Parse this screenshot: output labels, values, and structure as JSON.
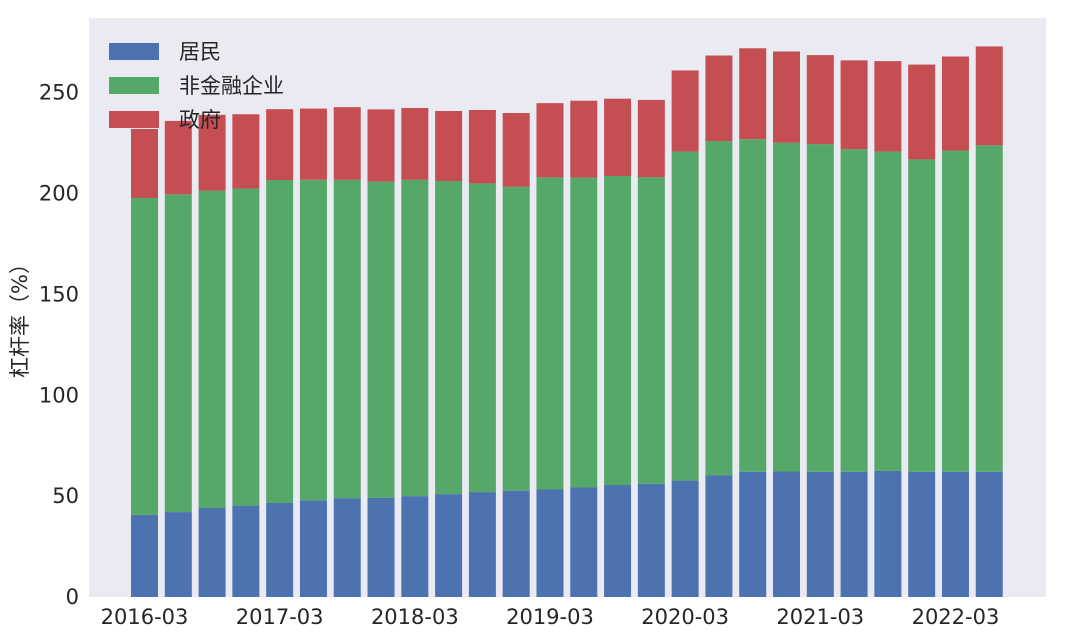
{
  "chart_data": {
    "type": "bar",
    "stacked": true,
    "title": "",
    "xlabel": "",
    "ylabel": "杠杆率（%）",
    "ylim": [
      0,
      287
    ],
    "yticks": [
      0,
      50,
      100,
      150,
      200,
      250
    ],
    "grid": false,
    "legend_position": "top-left",
    "background_color": "#EAEAF2",
    "categories": [
      "2016-03",
      "2016-06",
      "2016-09",
      "2016-12",
      "2017-03",
      "2017-06",
      "2017-09",
      "2017-12",
      "2018-03",
      "2018-06",
      "2018-09",
      "2018-12",
      "2019-03",
      "2019-06",
      "2019-09",
      "2019-12",
      "2020-03",
      "2020-06",
      "2020-09",
      "2020-12",
      "2021-03",
      "2021-06",
      "2021-09",
      "2021-12",
      "2022-03",
      "2022-06"
    ],
    "xtick_labels": [
      "2016-03",
      "2017-03",
      "2018-03",
      "2019-03",
      "2020-03",
      "2021-03",
      "2022-03"
    ],
    "xtick_indices": [
      0,
      4,
      8,
      12,
      16,
      20,
      24
    ],
    "series": [
      {
        "name": "居民",
        "color": "#4C72B0",
        "values": [
          40.7,
          42.1,
          44.1,
          45.3,
          46.6,
          47.9,
          49.0,
          49.1,
          50.0,
          51.0,
          52.0,
          52.7,
          53.3,
          54.3,
          55.5,
          56.1,
          57.7,
          60.4,
          62.1,
          62.2,
          62.1,
          62.1,
          62.5,
          62.1,
          62.1,
          62.1
        ]
      },
      {
        "name": "非金融企业",
        "color": "#55A868",
        "values": [
          157.1,
          157.5,
          157.3,
          157.2,
          160.1,
          158.9,
          157.8,
          156.8,
          156.8,
          155.2,
          153.0,
          150.6,
          154.7,
          153.6,
          153.2,
          152.0,
          163.1,
          165.6,
          164.8,
          163.0,
          162.4,
          159.9,
          158.3,
          154.8,
          159.2,
          161.8
        ]
      },
      {
        "name": "政府",
        "color": "#C44E52",
        "values": [
          34.2,
          36.4,
          37.6,
          36.8,
          35.1,
          35.3,
          36.0,
          35.8,
          35.6,
          34.7,
          36.4,
          36.6,
          36.8,
          38.1,
          38.3,
          38.3,
          40.2,
          42.4,
          45.1,
          45.2,
          44.1,
          44.0,
          44.8,
          47.0,
          46.6,
          49.0
        ]
      }
    ]
  }
}
